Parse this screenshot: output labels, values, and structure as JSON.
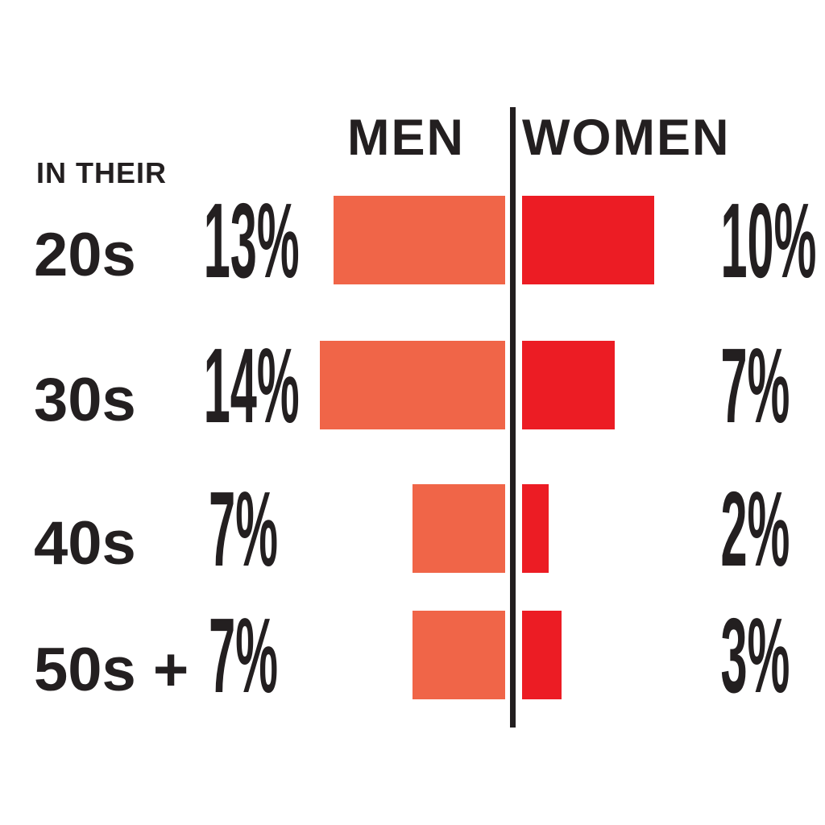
{
  "chart_data": {
    "type": "bar",
    "subtype": "diverging-horizontal",
    "title": "",
    "group_label": "IN THEIR",
    "categories": [
      "20s",
      "30s",
      "40s",
      "50s +"
    ],
    "series": [
      {
        "name": "MEN",
        "values": [
          13,
          14,
          7,
          7
        ],
        "labels": [
          "13%",
          "14%",
          "7%",
          "7%"
        ],
        "color": "#F06548"
      },
      {
        "name": "WOMEN",
        "values": [
          10,
          7,
          2,
          3
        ],
        "labels": [
          "10%",
          "7%",
          "2%",
          "3%"
        ],
        "color": "#EC1C24"
      }
    ],
    "unit": "%",
    "legend_position": "top-center",
    "grid": false,
    "axes_hidden": true,
    "xlim_per_side": [
      0,
      14
    ],
    "divider_color": "#231F20",
    "text_color": "#231F20",
    "background": "#FFFFFF"
  }
}
